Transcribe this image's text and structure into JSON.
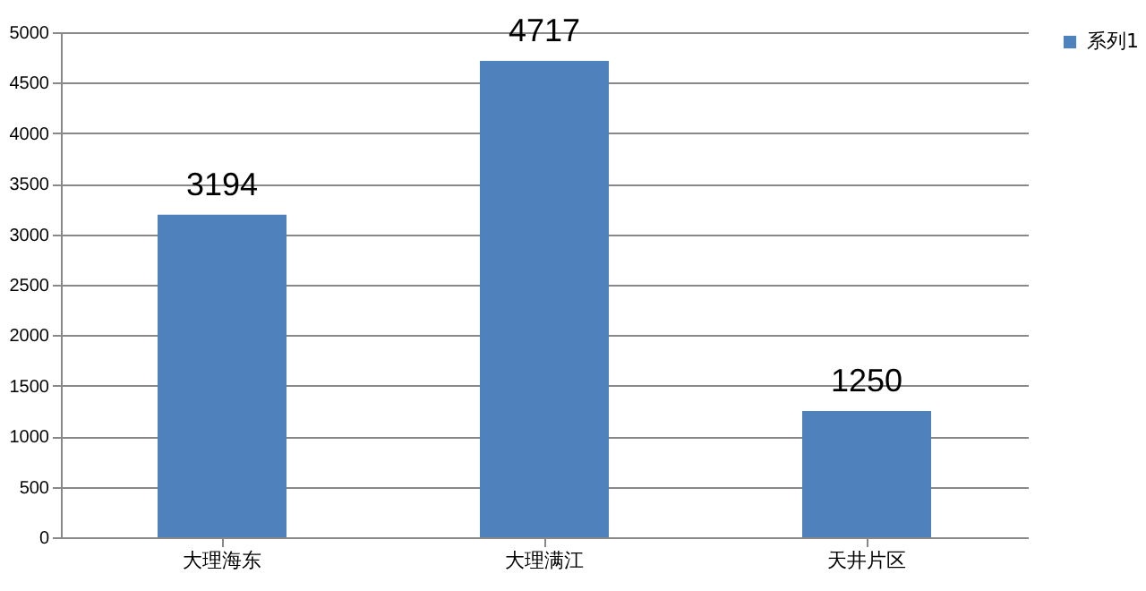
{
  "chart_data": {
    "type": "bar",
    "categories": [
      "大理海东",
      "大理满江",
      "天井片区"
    ],
    "series": [
      {
        "name": "系列1",
        "color": "#4f81bd",
        "values": [
          3194,
          4717,
          1250
        ]
      }
    ],
    "ylim": [
      0,
      5000
    ],
    "yticks": [
      0,
      500,
      1000,
      1500,
      2000,
      2500,
      3000,
      3500,
      4000,
      4500,
      5000
    ],
    "grid": "y",
    "legend": "right",
    "data_labels": true
  }
}
